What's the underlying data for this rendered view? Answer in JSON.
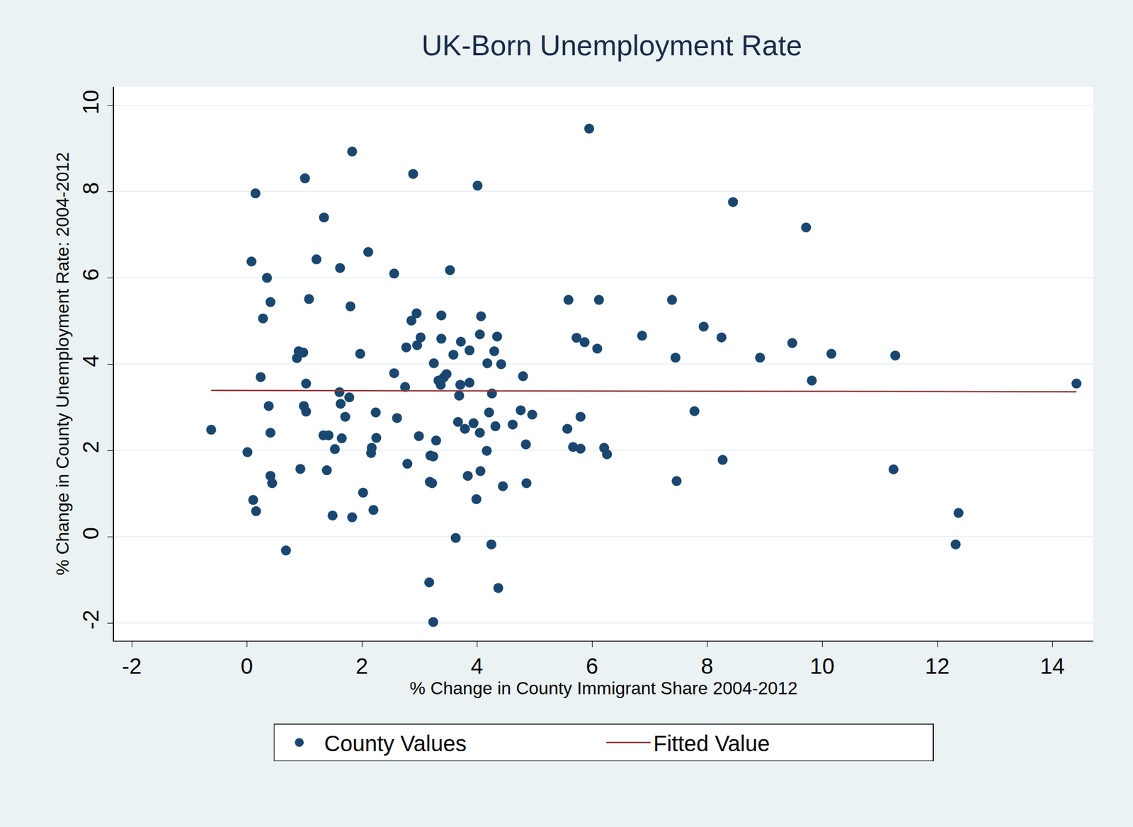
{
  "chart_data": {
    "type": "scatter",
    "title": "UK-Born Unemployment Rate",
    "x_label": "% Change in County Immigrant Share 2004-2012",
    "y_label": "% Change in County Unemployment Rate: 2004-2012",
    "xlim": [
      -2.31,
      14.71
    ],
    "xticks": [
      -2,
      0,
      2,
      4,
      6,
      8,
      10,
      12,
      14
    ],
    "ylim": [
      -2.41,
      10.43
    ],
    "yticks": [
      -2,
      0,
      2,
      4,
      6,
      8,
      10
    ],
    "grid": true,
    "legend": "bottom",
    "series": [
      {
        "name": "County Values",
        "type": "scatter",
        "marker": "circle",
        "color": "#1a476f",
        "x": [
          -0.62,
          0.01,
          0.08,
          0.11,
          0.15,
          0.16,
          0.24,
          0.28,
          0.35,
          0.38,
          0.41,
          0.41,
          0.41,
          0.44,
          0.68,
          0.87,
          0.9,
          0.93,
          0.98,
          1.01,
          0.99,
          1.03,
          1.03,
          1.08,
          1.21,
          1.34,
          1.33,
          1.42,
          1.39,
          1.49,
          1.53,
          1.62,
          1.61,
          1.63,
          1.65,
          1.71,
          1.78,
          1.8,
          1.83,
          1.83,
          1.97,
          2.02,
          2.11,
          2.16,
          2.17,
          2.2,
          2.24,
          2.25,
          2.56,
          2.56,
          2.61,
          2.75,
          2.77,
          2.79,
          2.86,
          2.89,
          2.95,
          2.96,
          2.99,
          3.02,
          3.17,
          3.18,
          3.19,
          3.22,
          3.24,
          3.24,
          3.25,
          3.29,
          3.33,
          3.37,
          3.38,
          3.38,
          3.42,
          3.47,
          3.53,
          3.59,
          3.63,
          3.67,
          3.69,
          3.71,
          3.72,
          3.79,
          3.84,
          3.87,
          3.87,
          3.94,
          3.99,
          4.01,
          4.05,
          4.06,
          4.05,
          4.07,
          4.17,
          4.18,
          4.21,
          4.25,
          4.26,
          4.3,
          4.32,
          4.35,
          4.37,
          4.42,
          4.45,
          4.62,
          4.76,
          4.8,
          4.85,
          4.86,
          4.96,
          5.57,
          5.59,
          5.67,
          5.73,
          5.8,
          5.8,
          5.87,
          5.95,
          6.09,
          6.12,
          6.21,
          6.26,
          6.87,
          7.39,
          7.45,
          7.47,
          7.78,
          7.94,
          8.25,
          8.27,
          8.45,
          8.92,
          9.48,
          9.72,
          9.82,
          10.16,
          11.27,
          11.24,
          12.37,
          12.32,
          14.42
        ],
        "values": [
          2.48,
          1.96,
          6.38,
          0.85,
          7.96,
          0.59,
          3.7,
          5.06,
          6.0,
          3.03,
          5.44,
          2.41,
          1.41,
          1.24,
          -0.32,
          4.14,
          4.3,
          1.57,
          4.27,
          8.31,
          3.03,
          2.9,
          3.55,
          5.51,
          6.43,
          7.4,
          2.35,
          2.35,
          1.54,
          0.49,
          2.03,
          6.23,
          3.35,
          3.08,
          2.28,
          2.78,
          3.23,
          5.34,
          0.45,
          8.93,
          4.24,
          1.02,
          6.6,
          1.94,
          2.06,
          0.62,
          2.88,
          2.29,
          6.1,
          3.79,
          2.75,
          3.47,
          4.39,
          1.69,
          5.01,
          8.41,
          5.18,
          4.44,
          2.33,
          4.62,
          -1.06,
          1.27,
          1.88,
          1.24,
          -1.98,
          1.86,
          4.02,
          2.23,
          3.62,
          3.52,
          5.13,
          4.59,
          3.69,
          3.77,
          6.18,
          4.22,
          -0.03,
          2.66,
          3.27,
          3.52,
          4.52,
          2.5,
          1.41,
          3.57,
          4.32,
          2.63,
          0.87,
          8.14,
          2.41,
          1.52,
          4.69,
          5.11,
          1.99,
          4.02,
          2.88,
          -0.18,
          3.32,
          4.3,
          2.56,
          4.64,
          -1.19,
          4.0,
          1.17,
          2.6,
          2.93,
          3.72,
          2.14,
          1.24,
          2.83,
          2.5,
          5.49,
          2.08,
          4.61,
          2.78,
          2.04,
          4.51,
          9.46,
          4.36,
          5.49,
          2.06,
          1.91,
          4.66,
          5.49,
          4.15,
          1.29,
          2.91,
          4.87,
          4.62,
          1.78,
          7.76,
          4.15,
          4.49,
          7.17,
          3.62,
          4.24,
          4.2,
          1.56,
          0.55,
          -0.18,
          3.55
        ]
      },
      {
        "name": "Fitted Value",
        "type": "line",
        "line_style": "solid",
        "color": "#90353b",
        "x": [
          -0.62,
          14.42
        ],
        "values": [
          3.39,
          3.36
        ]
      }
    ]
  }
}
